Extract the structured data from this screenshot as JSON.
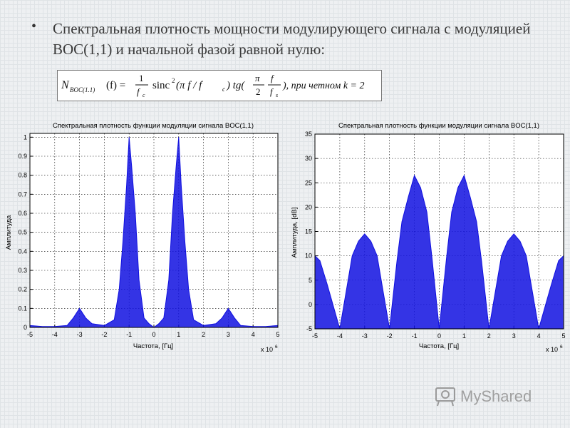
{
  "slide": {
    "bullet": "•",
    "title": "Спектральная плотность мощности модулирующего сигнала с модуляцией BOC(1,1) и начальной фазой равной нулю:"
  },
  "formula": {
    "lhs_symbol": "N",
    "lhs_sub": "BOC(1.1)",
    "lhs_arg": "(f) =",
    "frac1_num": "1",
    "frac1_den": "f",
    "frac1_den_sub": "c",
    "sinc_text": "sinc",
    "sinc_power": "2",
    "sinc_arg": "(π f / f",
    "sinc_arg_sub": "c",
    "tg_text": ") tg(",
    "frac2_num": "π",
    "frac2_den": "2",
    "frac3_num": "f",
    "frac3_den": "f",
    "frac3_den_sub": "s",
    "condition": "), при   четном   k = 2"
  },
  "watermark": {
    "text": "MyShared",
    "icon": "projector-icon"
  },
  "chart_data": [
    {
      "type": "line",
      "title": "Спектральная плотность функции модуляции сигнала BOC(1,1)",
      "xlabel": "Частота, [Гц]",
      "ylabel": "Амплитуда",
      "x_multiplier": "x 10",
      "x_multiplier_exp": "6",
      "xlim": [
        -5,
        5
      ],
      "ylim": [
        0,
        1.02
      ],
      "grid": true,
      "color": "#1010e0",
      "xticks": [
        "-5",
        "-4",
        "-3",
        "-2",
        "-1",
        "0",
        "1",
        "2",
        "3",
        "4",
        "5"
      ],
      "yticks": [
        "0",
        "0.1",
        "0.2",
        "0.3",
        "0.4",
        "0.5",
        "0.6",
        "0.7",
        "0.8",
        "0.9",
        "1"
      ],
      "series": [
        {
          "x": [
            -5,
            -4.5,
            -4,
            -3.5,
            -3.25,
            -3,
            -2.75,
            -2.5,
            -2,
            -1.6,
            -1.4,
            -1.25,
            -1.1,
            -1,
            -0.9,
            -0.75,
            -0.6,
            -0.4,
            -0.2,
            0,
            0.2,
            0.4,
            0.6,
            0.75,
            0.9,
            1,
            1.1,
            1.25,
            1.4,
            1.6,
            2,
            2.5,
            2.75,
            3,
            3.25,
            3.5,
            4,
            4.5,
            5
          ],
          "values": [
            0.01,
            0.005,
            0.005,
            0.01,
            0.05,
            0.1,
            0.05,
            0.02,
            0.01,
            0.04,
            0.2,
            0.45,
            0.75,
            1.0,
            0.85,
            0.6,
            0.25,
            0.05,
            0.02,
            0.0,
            0.02,
            0.05,
            0.25,
            0.6,
            0.85,
            1.0,
            0.75,
            0.45,
            0.2,
            0.04,
            0.01,
            0.02,
            0.05,
            0.1,
            0.05,
            0.01,
            0.005,
            0.005,
            0.01
          ]
        }
      ]
    },
    {
      "type": "line",
      "title": "Спектральная плотность функции модуляции сигнала BOC(1,1)",
      "xlabel": "Частота, [Гц]",
      "ylabel": "Амплитуда, [dB]",
      "x_multiplier": "x 10",
      "x_multiplier_exp": "6",
      "xlim": [
        -5,
        5
      ],
      "ylim": [
        -5,
        35
      ],
      "grid": true,
      "color": "#1010e0",
      "xticks": [
        "-5",
        "-4",
        "-3",
        "-2",
        "-1",
        "0",
        "1",
        "2",
        "3",
        "4",
        "5"
      ],
      "yticks": [
        "-5",
        "0",
        "5",
        "10",
        "15",
        "20",
        "25",
        "30",
        "35"
      ],
      "series": [
        {
          "x": [
            -5,
            -4.8,
            -4.5,
            -4,
            -3.7,
            -3.5,
            -3.25,
            -3,
            -2.75,
            -2.5,
            -2.3,
            -2,
            -1.7,
            -1.5,
            -1.25,
            -1,
            -0.75,
            -0.5,
            -0.3,
            0,
            0.3,
            0.5,
            0.75,
            1,
            1.25,
            1.5,
            1.7,
            2,
            2.3,
            2.5,
            2.75,
            3,
            3.25,
            3.5,
            3.7,
            4,
            4.5,
            4.8,
            5
          ],
          "values": [
            10,
            9,
            4,
            -5,
            4,
            10,
            13,
            14.5,
            13,
            10,
            4,
            -5,
            9,
            17,
            22,
            26.5,
            24,
            19,
            10,
            -5,
            10,
            19,
            24,
            26.5,
            22,
            17,
            9,
            -5,
            4,
            10,
            13,
            14.5,
            13,
            10,
            4,
            -5,
            4,
            9,
            10
          ]
        }
      ]
    }
  ]
}
